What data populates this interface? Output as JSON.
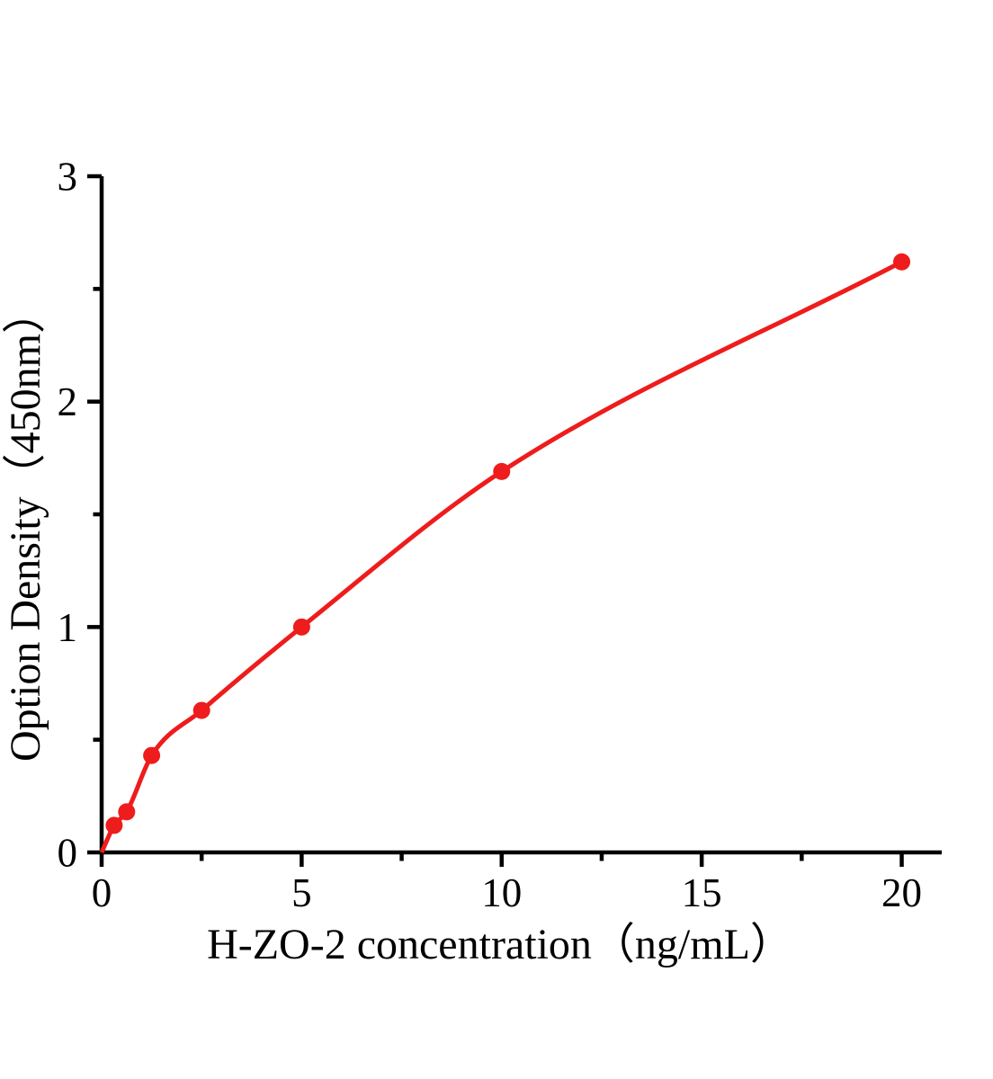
{
  "figure": {
    "background": "#ffffff"
  },
  "chart_data": {
    "type": "scatter",
    "subtype": "standard-curve-with-smooth-fit-line",
    "xlabel": "H-ZO-2 concentration（ng/mL）",
    "ylabel": "Option Density（450nm）",
    "x": [
      0.3125,
      0.625,
      1.25,
      2.5,
      5,
      10,
      20
    ],
    "y": [
      0.12,
      0.18,
      0.43,
      0.63,
      1.0,
      1.69,
      2.62
    ],
    "fit_curve_start": [
      0,
      0
    ],
    "xlim": [
      0,
      21
    ],
    "ylim": [
      0,
      3
    ],
    "x_major_ticks": [
      0,
      5,
      10,
      15,
      20
    ],
    "x_minor_ticks": [
      2.5,
      7.5,
      12.5,
      17.5
    ],
    "y_major_ticks": [
      0,
      1,
      2,
      3
    ],
    "y_minor_ticks": [
      0.5,
      1.5,
      2.5
    ],
    "grid": false,
    "legend": "none",
    "marker_color": "#ee1c1c",
    "line_color": "#ee1c1c",
    "axis_color": "#000000"
  }
}
